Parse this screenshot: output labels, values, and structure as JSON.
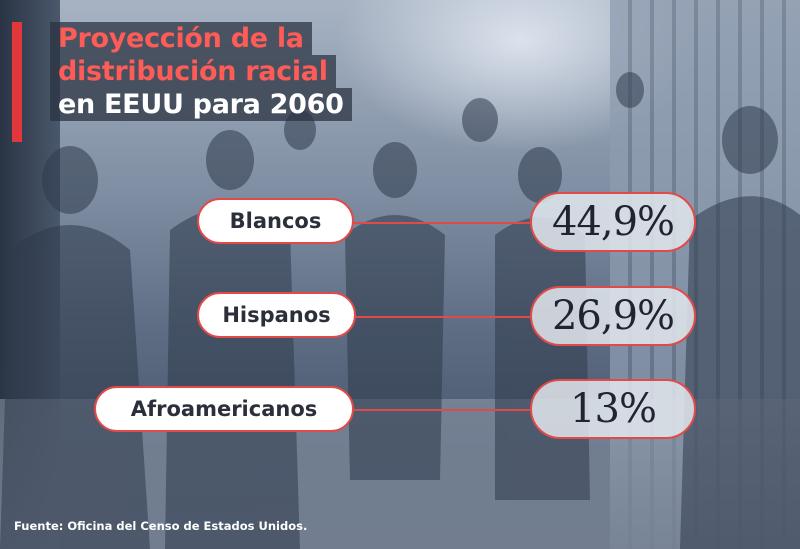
{
  "title": {
    "line1": "Proyección de la",
    "line2": "distribución racial",
    "line3": "en EEUU para 2060"
  },
  "colors": {
    "accent": "#e24a4a",
    "title_red": "#ff5b57",
    "dark_text": "#2a2f3a"
  },
  "rows": [
    {
      "label": "Blancos",
      "value": "44,9%"
    },
    {
      "label": "Hispanos",
      "value": "26,9%"
    },
    {
      "label": "Afroamericanos",
      "value": "13%"
    }
  ],
  "source": "Fuente: Oficina del Censo de Estados Unidos."
}
